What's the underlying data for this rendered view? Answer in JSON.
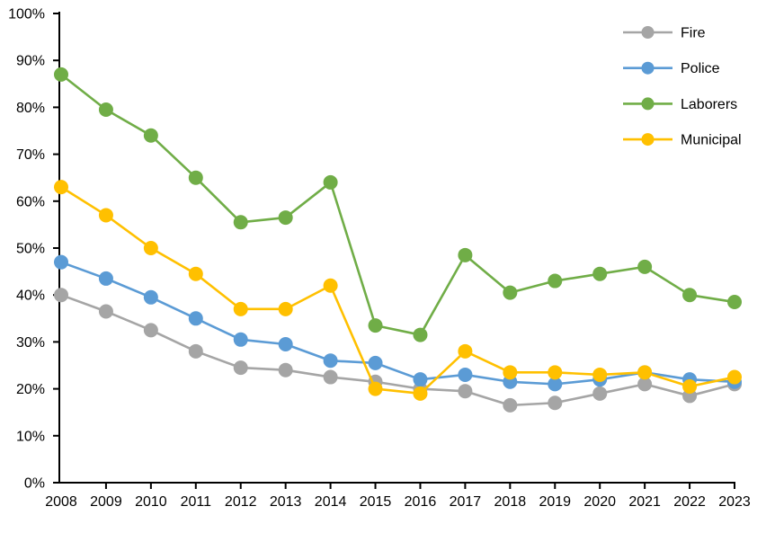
{
  "chart_data": {
    "type": "line",
    "title": "",
    "xlabel": "",
    "ylabel": "",
    "x": [
      "2008",
      "2009",
      "2010",
      "2011",
      "2012",
      "2013",
      "2014",
      "2015",
      "2016",
      "2017",
      "2018",
      "2019",
      "2020",
      "2021",
      "2022",
      "2023"
    ],
    "ylim": [
      0,
      100
    ],
    "y_ticks": [
      {
        "value": 0,
        "label": "0%"
      },
      {
        "value": 10,
        "label": "10%"
      },
      {
        "value": 20,
        "label": "20%"
      },
      {
        "value": 30,
        "label": "30%"
      },
      {
        "value": 40,
        "label": "40%"
      },
      {
        "value": 50,
        "label": "50%"
      },
      {
        "value": 60,
        "label": "60%"
      },
      {
        "value": 70,
        "label": "70%"
      },
      {
        "value": 80,
        "label": "80%"
      },
      {
        "value": 90,
        "label": "90%"
      },
      {
        "value": 100,
        "label": "100%"
      }
    ],
    "grid": false,
    "legend_position": "top-right",
    "marker": "circle",
    "series": [
      {
        "name": "Fire",
        "color": "#A5A5A5",
        "values": [
          40,
          36.5,
          32.5,
          28,
          24.5,
          24,
          22.5,
          21.5,
          20,
          19.5,
          16.5,
          17,
          19,
          21,
          18.5,
          21
        ]
      },
      {
        "name": "Police",
        "color": "#5B9BD5",
        "values": [
          47,
          43.5,
          39.5,
          35,
          30.5,
          29.5,
          26,
          25.5,
          22,
          23,
          21.5,
          21,
          22,
          23.5,
          22,
          21.5
        ]
      },
      {
        "name": "Laborers",
        "color": "#70AD47",
        "values": [
          87,
          79.5,
          74,
          65,
          55.5,
          56.5,
          64,
          33.5,
          31.5,
          48.5,
          40.5,
          43,
          44.5,
          46,
          40,
          38.5
        ]
      },
      {
        "name": "Municipal",
        "color": "#FFC000",
        "values": [
          63,
          57,
          50,
          44.5,
          37,
          37,
          42,
          20,
          19,
          28,
          23.5,
          23.5,
          23,
          23.5,
          20.5,
          22.5
        ]
      }
    ],
    "axis_color": "#000000"
  }
}
